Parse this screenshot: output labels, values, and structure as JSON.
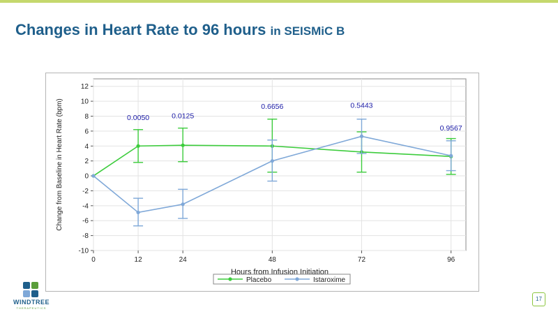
{
  "slide": {
    "title": "Changes in Heart Rate to 96 hours",
    "subtitle": "in SEISMiC B",
    "page_number": "17",
    "logo": {
      "name": "WINDTREE",
      "tagline": "THERAPEUTICS"
    }
  },
  "colors": {
    "title": "#1f5f8b",
    "accent_bar": "#c5d86d",
    "placebo": "#3ccc3c",
    "istaroxime": "#7fa8d8",
    "pvalue_text": "#1a1aa6"
  },
  "chart_data": {
    "type": "line",
    "title": "",
    "xlabel": "Hours from Infusion Initiation",
    "ylabel": "Change from Baseline in Heart Rate (bpm)",
    "x": [
      0,
      12,
      24,
      48,
      72,
      96
    ],
    "xticks": [
      0,
      12,
      24,
      48,
      72,
      96
    ],
    "xlim": [
      0,
      100
    ],
    "yticks": [
      12,
      10,
      8,
      6,
      4,
      2,
      0,
      -2,
      -4,
      -6,
      -8,
      -10
    ],
    "ylim": [
      -10,
      13
    ],
    "grid": true,
    "legend_position": "bottom",
    "series": [
      {
        "name": "Placebo",
        "values": [
          0,
          4.0,
          4.1,
          4.0,
          3.2,
          2.6
        ],
        "err_low": [
          0,
          1.8,
          1.9,
          0.5,
          0.5,
          0.2
        ],
        "err_high": [
          0,
          6.2,
          6.4,
          7.6,
          5.9,
          5.0
        ]
      },
      {
        "name": "Istaroxime",
        "values": [
          0,
          -4.9,
          -3.8,
          2.0,
          5.3,
          2.7
        ],
        "err_low": [
          0,
          -6.7,
          -5.7,
          -0.7,
          3.0,
          0.7
        ],
        "err_high": [
          0,
          -3.0,
          -1.8,
          4.8,
          7.6,
          4.7
        ]
      }
    ],
    "annotations": [
      {
        "x": 12,
        "text": "0.0050"
      },
      {
        "x": 24,
        "text": "0.0125"
      },
      {
        "x": 48,
        "text": "0.6656"
      },
      {
        "x": 72,
        "text": "0.5443"
      },
      {
        "x": 96,
        "text": "0.9567"
      }
    ],
    "annotation_y": [
      7.5,
      7.7,
      9.0,
      9.1,
      6.1
    ]
  }
}
